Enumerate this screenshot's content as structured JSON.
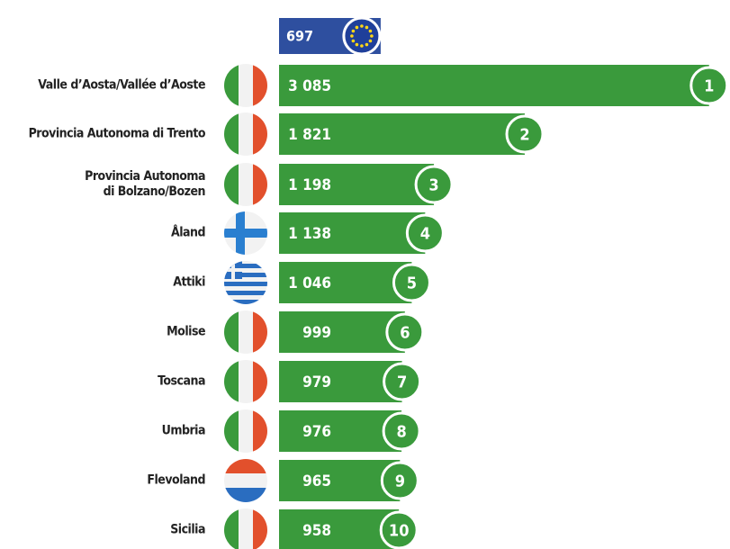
{
  "chart_data": {
    "type": "bar",
    "orientation": "horizontal",
    "categories": [
      "Valle d’Aosta/Vallée d’Aoste",
      "Provincia Autonoma di Trento",
      "Provincia Autonoma\ndi Bolzano/Bozen",
      "Åland",
      "Attiki",
      "Molise",
      "Toscana",
      "Umbria",
      "Flevoland",
      "Sicilia"
    ],
    "values": [
      3085,
      1821,
      1198,
      1138,
      1046,
      999,
      979,
      976,
      965,
      958
    ],
    "value_labels": [
      "3 085",
      "1 821",
      "1 198",
      "1 138",
      "1 046",
      "999",
      "979",
      "976",
      "965",
      "958"
    ],
    "ranks": [
      1,
      2,
      3,
      4,
      5,
      6,
      7,
      8,
      9,
      10
    ],
    "color": "#3a9a3c",
    "reference": {
      "value": 697,
      "color": "#2e4f9f"
    }
  }
}
